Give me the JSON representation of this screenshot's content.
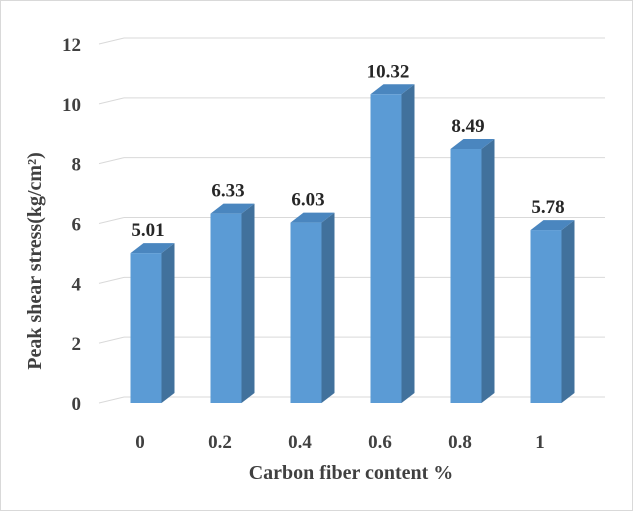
{
  "chart_data": {
    "type": "bar",
    "style": "3d-column",
    "categories": [
      "0",
      "0.2",
      "0.4",
      "0.6",
      "0.8",
      "1"
    ],
    "values": [
      5.01,
      6.33,
      6.03,
      10.32,
      8.49,
      5.78
    ],
    "data_labels": [
      "5.01",
      "6.33",
      "6.03",
      "10.32",
      "8.49",
      "5.78"
    ],
    "title": "",
    "xlabel": "Carbon fiber content %",
    "ylabel": "Peak shear stress(kg/cm²)",
    "ylim": [
      0,
      12
    ],
    "yticks": [
      "0",
      "2",
      "4",
      "6",
      "8",
      "10",
      "12"
    ],
    "grid": true,
    "legend": "none",
    "colors": {
      "bar_front": "#5b9bd5",
      "bar_side": "#41719c",
      "bar_top": "#4a86bf",
      "grid": "#d9d9d9"
    }
  }
}
